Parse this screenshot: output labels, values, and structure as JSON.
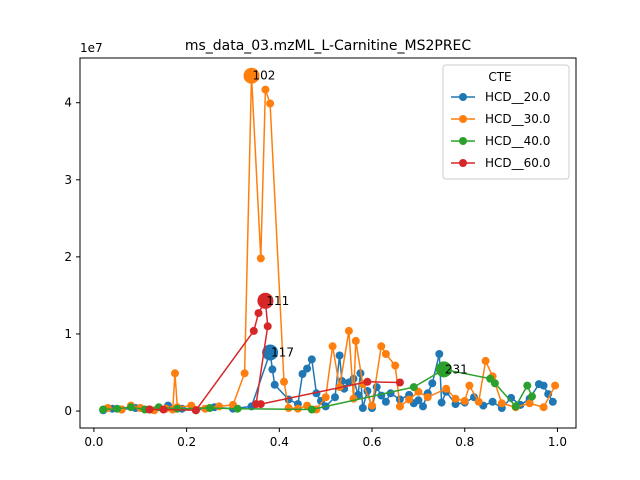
{
  "chart_data": {
    "type": "line",
    "title": "ms_data_03.mzML_L-Carnitine_MS2PREC",
    "xlabel": "",
    "ylabel": "",
    "y_offset_label": "1e7",
    "xlim": [
      -0.03,
      1.04
    ],
    "ylim": [
      -2200000.0,
      45800000.0
    ],
    "x_ticks": [
      0.0,
      0.2,
      0.4,
      0.6,
      0.8,
      1.0
    ],
    "x_tick_labels": [
      "0.0",
      "0.2",
      "0.4",
      "0.6",
      "0.8",
      "1.0"
    ],
    "y_ticks": [
      0,
      10000000,
      20000000,
      30000000,
      40000000
    ],
    "y_tick_labels": [
      "0",
      "1",
      "2",
      "3",
      "4"
    ],
    "grid": false,
    "legend": {
      "title": "CTE",
      "position": "top-right"
    },
    "series": [
      {
        "name": "HCD__20.0",
        "color": "#1f77b4",
        "points": [
          [
            0.02,
            100000.0
          ],
          [
            0.04,
            300000.0
          ],
          [
            0.06,
            200000.0
          ],
          [
            0.09,
            400000.0
          ],
          [
            0.12,
            200000.0
          ],
          [
            0.16,
            700000.0
          ],
          [
            0.19,
            300000.0
          ],
          [
            0.22,
            100000.0
          ],
          [
            0.26,
            500000.0
          ],
          [
            0.3,
            300000.0
          ],
          [
            0.34,
            600000.0
          ],
          [
            0.38,
            7600000.0
          ],
          [
            0.385,
            5400000.0
          ],
          [
            0.39,
            3400000.0
          ],
          [
            0.42,
            1500000.0
          ],
          [
            0.44,
            900000.0
          ],
          [
            0.45,
            4800000.0
          ],
          [
            0.46,
            5500000.0
          ],
          [
            0.47,
            6700000.0
          ],
          [
            0.48,
            2300000.0
          ],
          [
            0.49,
            1300000.0
          ],
          [
            0.5,
            600000.0
          ],
          [
            0.52,
            1800000.0
          ],
          [
            0.53,
            7200000.0
          ],
          [
            0.535,
            3900000.0
          ],
          [
            0.54,
            2900000.0
          ],
          [
            0.55,
            3700000.0
          ],
          [
            0.56,
            4200000.0
          ],
          [
            0.57,
            2100000.0
          ],
          [
            0.575,
            4900000.0
          ],
          [
            0.58,
            400000.0
          ],
          [
            0.59,
            2600000.0
          ],
          [
            0.6,
            400000.0
          ],
          [
            0.61,
            3100000.0
          ],
          [
            0.62,
            2000000.0
          ],
          [
            0.63,
            1200000.0
          ],
          [
            0.64,
            2300000.0
          ],
          [
            0.66,
            1500000.0
          ],
          [
            0.68,
            2100000.0
          ],
          [
            0.69,
            1000000.0
          ],
          [
            0.7,
            1400000.0
          ],
          [
            0.71,
            600000.0
          ],
          [
            0.72,
            2300000.0
          ],
          [
            0.73,
            3600000.0
          ],
          [
            0.745,
            7400000.0
          ],
          [
            0.75,
            1100000.0
          ],
          [
            0.76,
            2500000.0
          ],
          [
            0.78,
            900000.0
          ],
          [
            0.8,
            1100000.0
          ],
          [
            0.82,
            1800000.0
          ],
          [
            0.84,
            700000.0
          ],
          [
            0.86,
            1200000.0
          ],
          [
            0.88,
            400000.0
          ],
          [
            0.9,
            1700000.0
          ],
          [
            0.92,
            800000.0
          ],
          [
            0.94,
            1600000.0
          ],
          [
            0.96,
            3500000.0
          ],
          [
            0.97,
            3300000.0
          ],
          [
            0.98,
            2200000.0
          ],
          [
            0.99,
            1200000.0
          ]
        ]
      },
      {
        "name": "HCD__30.0",
        "color": "#ff7f0e",
        "points": [
          [
            0.03,
            400000.0
          ],
          [
            0.06,
            200000.0
          ],
          [
            0.08,
            700000.0
          ],
          [
            0.1,
            400000.0
          ],
          [
            0.13,
            100000.0
          ],
          [
            0.155,
            300000.0
          ],
          [
            0.17,
            200000.0
          ],
          [
            0.175,
            4900000.0
          ],
          [
            0.18,
            500000.0
          ],
          [
            0.21,
            700000.0
          ],
          [
            0.24,
            300000.0
          ],
          [
            0.27,
            600000.0
          ],
          [
            0.3,
            800000.0
          ],
          [
            0.325,
            4900000.0
          ],
          [
            0.34,
            43500000.0
          ],
          [
            0.36,
            19800000.0
          ],
          [
            0.37,
            41700000.0
          ],
          [
            0.38,
            39900000.0
          ],
          [
            0.41,
            3800000.0
          ],
          [
            0.42,
            400000.0
          ],
          [
            0.44,
            300000.0
          ],
          [
            0.46,
            700000.0
          ],
          [
            0.48,
            200000.0
          ],
          [
            0.5,
            1800000.0
          ],
          [
            0.515,
            8400000.0
          ],
          [
            0.53,
            3100000.0
          ],
          [
            0.55,
            10400000.0
          ],
          [
            0.56,
            1600000.0
          ],
          [
            0.565,
            9100000.0
          ],
          [
            0.58,
            3500000.0
          ],
          [
            0.6,
            700000.0
          ],
          [
            0.62,
            8400000.0
          ],
          [
            0.63,
            7400000.0
          ],
          [
            0.65,
            5900000.0
          ],
          [
            0.66,
            600000.0
          ],
          [
            0.68,
            1500000.0
          ],
          [
            0.7,
            2500000.0
          ],
          [
            0.72,
            1800000.0
          ],
          [
            0.76,
            2900000.0
          ],
          [
            0.78,
            1600000.0
          ],
          [
            0.8,
            1300000.0
          ],
          [
            0.81,
            3300000.0
          ],
          [
            0.83,
            1200000.0
          ],
          [
            0.845,
            6500000.0
          ],
          [
            0.86,
            4500000.0
          ],
          [
            0.88,
            1000000.0
          ],
          [
            0.91,
            500000.0
          ],
          [
            0.94,
            1000000.0
          ],
          [
            0.97,
            500000.0
          ],
          [
            0.995,
            3300000.0
          ]
        ]
      },
      {
        "name": "HCD__40.0",
        "color": "#2ca02c",
        "points": [
          [
            0.02,
            200000.0
          ],
          [
            0.05,
            300000.0
          ],
          [
            0.08,
            500000.0
          ],
          [
            0.11,
            200000.0
          ],
          [
            0.14,
            500000.0
          ],
          [
            0.18,
            300000.0
          ],
          [
            0.25,
            400000.0
          ],
          [
            0.31,
            300000.0
          ],
          [
            0.47,
            200000.0
          ],
          [
            0.69,
            3100000.0
          ],
          [
            0.755,
            5400000.0
          ],
          [
            0.855,
            4200000.0
          ],
          [
            0.865,
            3600000.0
          ],
          [
            0.91,
            600000.0
          ],
          [
            0.935,
            3300000.0
          ],
          [
            0.945,
            1900000.0
          ]
        ]
      },
      {
        "name": "HCD__60.0",
        "color": "#d62728",
        "points": [
          [
            0.12,
            200000.0
          ],
          [
            0.15,
            200000.0
          ],
          [
            0.22,
            100000.0
          ],
          [
            0.345,
            10400000.0
          ],
          [
            0.355,
            12700000.0
          ],
          [
            0.37,
            14300000.0
          ],
          [
            0.375,
            11000000.0
          ],
          [
            0.35,
            900000.0
          ],
          [
            0.36,
            900000.0
          ],
          [
            0.59,
            3800000.0
          ],
          [
            0.66,
            3700000.0
          ]
        ]
      }
    ],
    "annotations": [
      {
        "text": "102",
        "x": 0.34,
        "y": 43500000.0,
        "series": "HCD__30.0"
      },
      {
        "text": "111",
        "x": 0.37,
        "y": 14300000.0,
        "series": "HCD__60.0"
      },
      {
        "text": "117",
        "x": 0.38,
        "y": 7600000.0,
        "series": "HCD__20.0"
      },
      {
        "text": "231",
        "x": 0.755,
        "y": 5400000.0,
        "series": "HCD__40.0"
      }
    ]
  }
}
